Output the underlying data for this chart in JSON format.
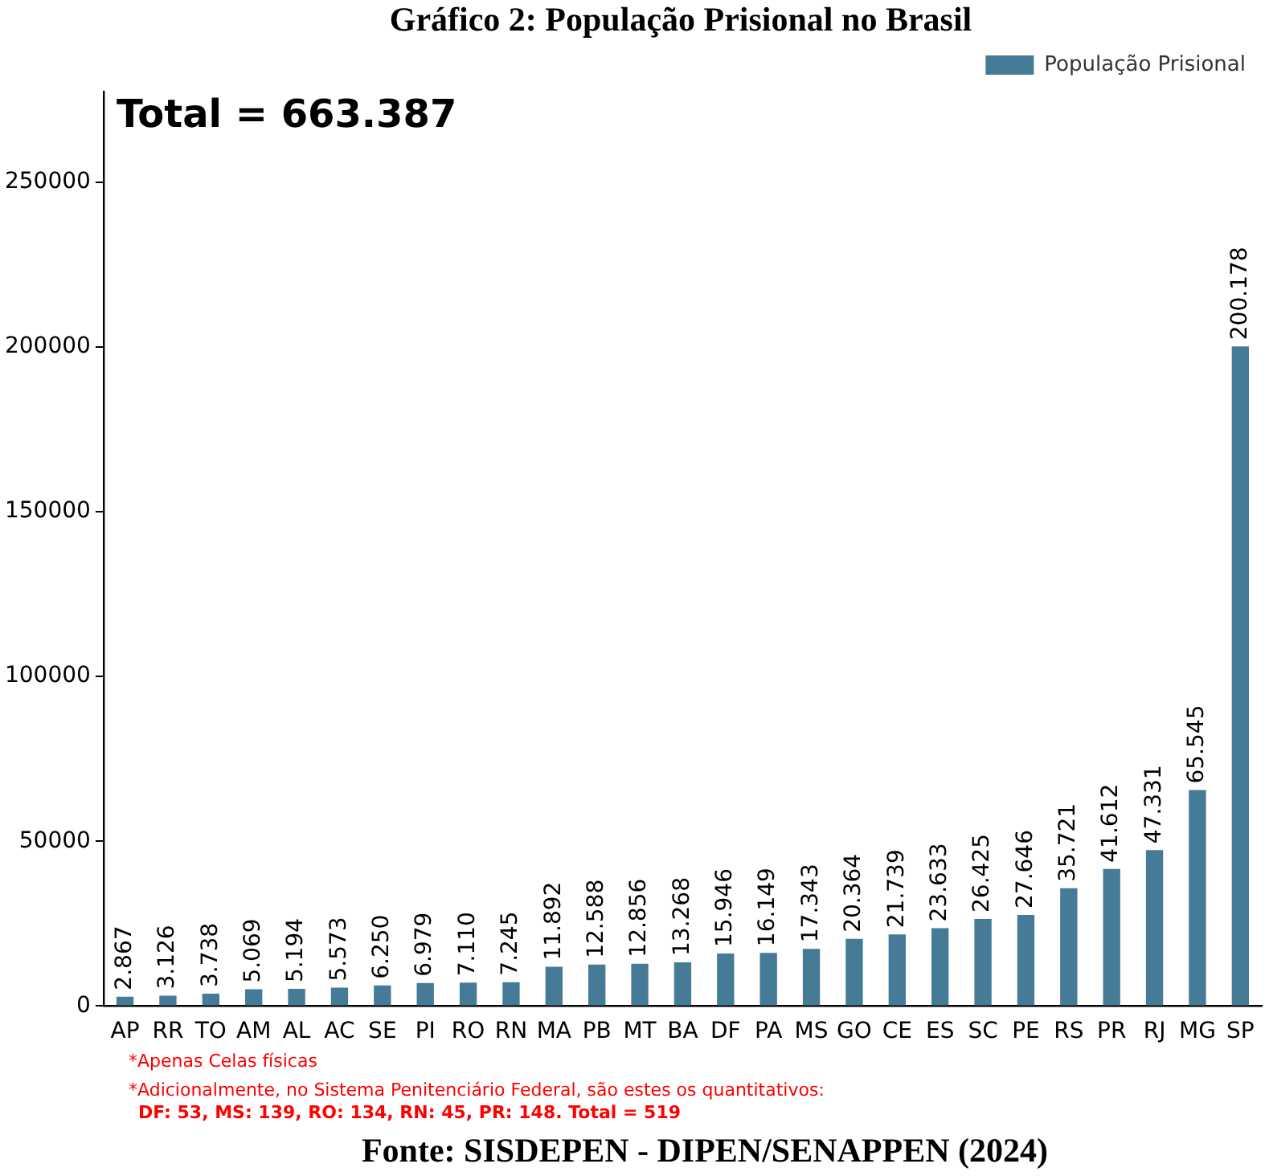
{
  "chart_data": {
    "type": "bar",
    "title": "Gráfico 2:  População Prisional no Brasil",
    "categories": [
      "AP",
      "RR",
      "TO",
      "AM",
      "AL",
      "AC",
      "SE",
      "PI",
      "RO",
      "RN",
      "MA",
      "PB",
      "MT",
      "BA",
      "DF",
      "PA",
      "MS",
      "GO",
      "CE",
      "ES",
      "SC",
      "PE",
      "RS",
      "PR",
      "RJ",
      "MG",
      "SP"
    ],
    "series": [
      {
        "name": "População Prisional",
        "color": "#457b96",
        "values": [
          2867,
          3126,
          3738,
          5069,
          5194,
          5573,
          6250,
          6979,
          7110,
          7245,
          11892,
          12588,
          12856,
          13268,
          15946,
          16149,
          17343,
          20364,
          21739,
          23633,
          26425,
          27646,
          35721,
          41612,
          47331,
          65545,
          200178
        ],
        "value_labels": [
          "2.867",
          "3.126",
          "3.738",
          "5.069",
          "5.194",
          "5.573",
          "6.250",
          "6.979",
          "7.110",
          "7.245",
          "11.892",
          "12.588",
          "12.856",
          "13.268",
          "15.946",
          "16.149",
          "17.343",
          "20.364",
          "21.739",
          "23.633",
          "26.425",
          "27.646",
          "35.721",
          "41.612",
          "47.331",
          "65.545",
          "200.178"
        ]
      }
    ],
    "ylim": [
      0,
      277500
    ],
    "yticks": [
      0,
      50000,
      100000,
      150000,
      200000,
      250000
    ],
    "grid": false,
    "legend": "top right",
    "annotations": [
      "Total = 663.387",
      "*Apenas Celas físicas",
      "*Adicionalmente, no Sistema Penitenciário Federal, são estes os quantitativos:",
      "DF: 53, MS: 139, RO: 134, RN: 45, PR: 148. Total = 519",
      "Fonte: SISDEPEN - DIPEN/SENAPPEN (2024)"
    ]
  }
}
